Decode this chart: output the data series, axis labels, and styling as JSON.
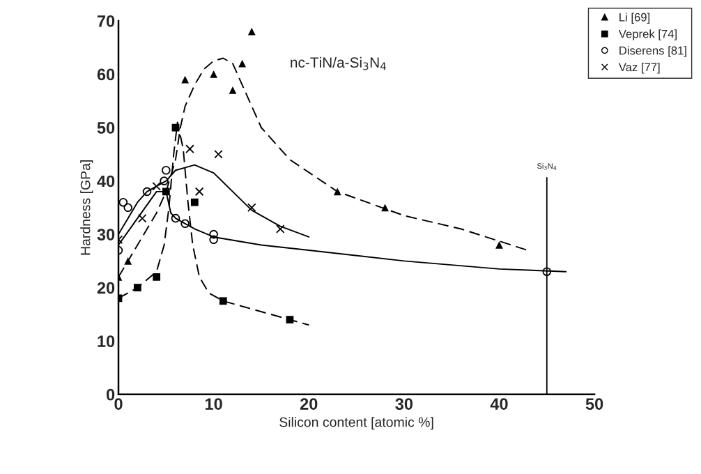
{
  "chart_data": {
    "type": "scatter",
    "xlabel": "Silicon content [atomic %]",
    "ylabel": "Hardness [GPa]",
    "annotations": [
      "nc-TiN/a-Si$_{3}$N$_{4}$"
    ],
    "xlim": [
      0,
      50
    ],
    "ylim": [
      0,
      70
    ],
    "xticks": [
      0,
      10,
      20,
      30,
      40,
      50
    ],
    "yticks": [
      0,
      10,
      20,
      30,
      40,
      50,
      60,
      70
    ],
    "grid": false,
    "legend": "top right",
    "ref_lines": [
      {
        "axis": "x",
        "value": 45,
        "label": "Si$_{3}$N$_{4}$",
        "color": "#000000",
        "line_style": "solid"
      }
    ],
    "series": [
      {
        "name": "Li [69]",
        "color": "#000000",
        "marker": "triangle",
        "x": [
          0,
          1,
          7,
          10,
          12,
          13,
          14,
          23,
          28,
          40
        ],
        "values": [
          22,
          25,
          59,
          60,
          57,
          62,
          68,
          38,
          35,
          28
        ]
      },
      {
        "name": "Veprek [74]",
        "color": "#000000",
        "marker": "square",
        "x": [
          0,
          2,
          4,
          5,
          6,
          8,
          11,
          18
        ],
        "values": [
          18,
          20,
          22,
          38,
          50,
          36,
          17.5,
          14
        ]
      },
      {
        "name": "Diserens [81]",
        "color": "#000000",
        "marker": "circle",
        "x": [
          0,
          0.5,
          1,
          3,
          4.8,
          5,
          6,
          7,
          10,
          10,
          45
        ],
        "values": [
          27,
          36,
          35,
          38,
          40,
          42,
          33,
          32,
          30,
          29,
          23
        ]
      },
      {
        "name": "Vaz [77]",
        "color": "#000000",
        "marker": "cross",
        "x": [
          0,
          2.5,
          4,
          7.5,
          8.5,
          10.5,
          14,
          17
        ],
        "values": [
          29,
          33,
          39,
          46,
          38,
          45,
          35,
          31
        ]
      },
      {
        "type": "line",
        "color": "#000000",
        "marker": "none",
        "line_style": "dashed",
        "x": [
          0,
          2,
          4,
          5,
          6,
          6.5,
          7,
          8,
          9,
          10,
          11,
          12,
          13,
          15,
          18,
          23,
          30,
          36,
          43
        ],
        "values": [
          22,
          28,
          34,
          38,
          44,
          50,
          54,
          58,
          61,
          62.5,
          63,
          62,
          58,
          50,
          44,
          38,
          33.5,
          31,
          27
        ]
      },
      {
        "type": "line",
        "color": "#000000",
        "marker": "none",
        "line_style": "dashed",
        "x": [
          0,
          2,
          4,
          4.8,
          5.3,
          5.8,
          6.2,
          6.8,
          7.3,
          7.8,
          8.5,
          9.5,
          11,
          14,
          18,
          20
        ],
        "values": [
          18,
          20,
          23,
          28,
          35,
          45,
          51,
          46,
          36,
          28,
          22,
          19,
          17.5,
          16,
          14,
          13
        ]
      },
      {
        "type": "line",
        "color": "#000000",
        "marker": "none",
        "line_style": "solid",
        "x": [
          0,
          1,
          2,
          3,
          4,
          5,
          6,
          8,
          10,
          12,
          14,
          17,
          20
        ],
        "values": [
          30,
          33,
          36,
          38,
          39,
          40,
          42,
          43,
          41.5,
          38,
          34.5,
          31.5,
          29.5
        ]
      },
      {
        "type": "line",
        "color": "#000000",
        "marker": "none",
        "line_style": "solid",
        "x": [
          0,
          2,
          4,
          5,
          5.5,
          6,
          8,
          10,
          15,
          20,
          30,
          40,
          47
        ],
        "values": [
          28,
          33,
          38,
          38,
          34,
          33,
          31,
          29.5,
          28,
          27,
          25,
          23.5,
          23
        ]
      }
    ]
  }
}
